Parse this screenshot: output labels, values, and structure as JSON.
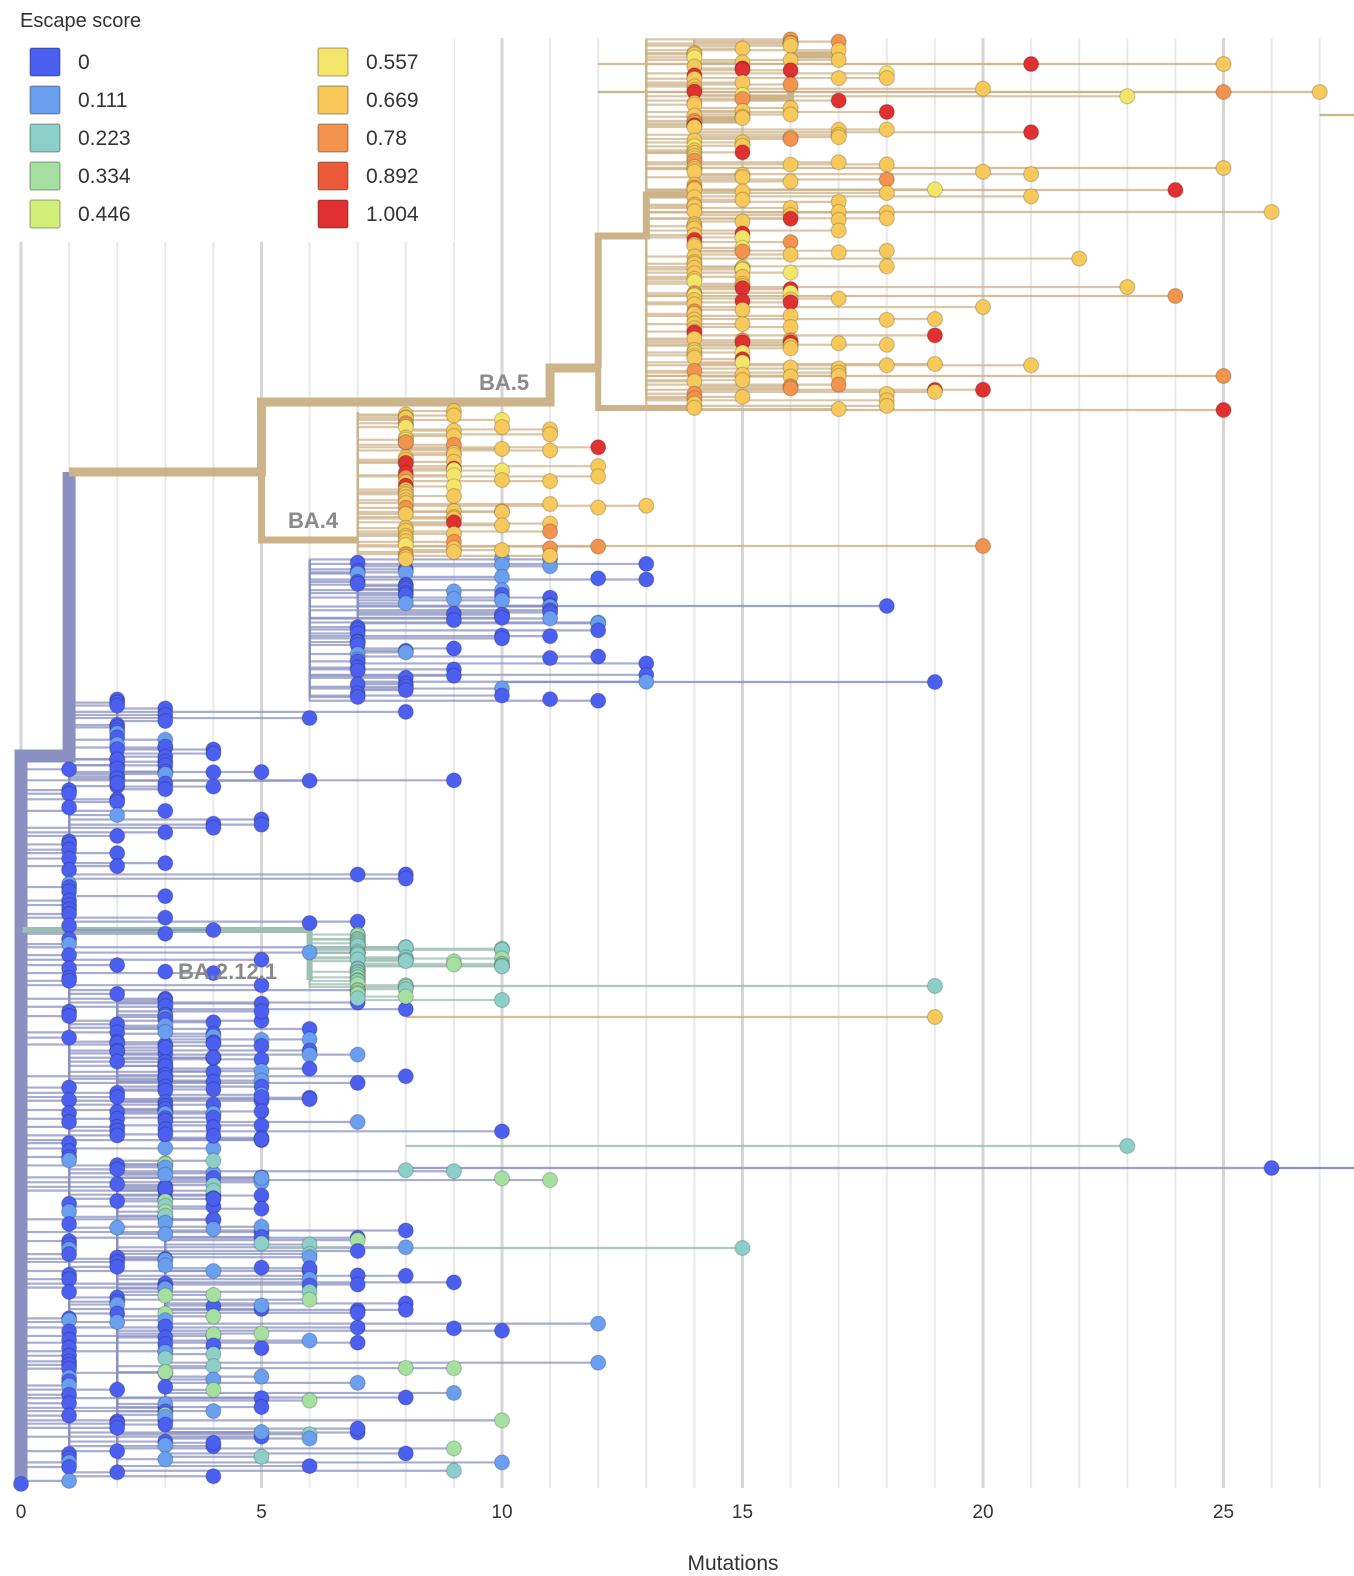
{
  "chart_data": {
    "type": "tree",
    "xlabel": "Mutations",
    "xlim": [
      0,
      27.5
    ],
    "x_ticks": [
      0,
      5,
      10,
      15,
      20,
      25
    ],
    "grid": "vertical lines every mutation",
    "legend": {
      "title": "Escape score",
      "placement": "top-left",
      "entries": [
        {
          "label": "0",
          "color": "#4b5ff0"
        },
        {
          "label": "0.111",
          "color": "#6a9ff0"
        },
        {
          "label": "0.223",
          "color": "#8ccfc8"
        },
        {
          "label": "0.334",
          "color": "#a5e0a0"
        },
        {
          "label": "0.446",
          "color": "#d4ee7a"
        },
        {
          "label": "0.557",
          "color": "#f5e46a"
        },
        {
          "label": "0.669",
          "color": "#f7c85a"
        },
        {
          "label": "0.78",
          "color": "#f2934e"
        },
        {
          "label": "0.892",
          "color": "#ec5a3c"
        },
        {
          "label": "1.004",
          "color": "#e03030"
        }
      ]
    },
    "clades": [
      {
        "name": "BA.5",
        "x": 10.2,
        "color": "0.669"
      },
      {
        "name": "BA.4",
        "x": 6.6,
        "color": "0.669"
      },
      {
        "name": "BA.2.12.1",
        "x": 5.8,
        "color": "0.223"
      }
    ],
    "branch_colors": {
      "base": "#8a90c2",
      "ba45": "#cdb389",
      "ba2121": "#9dbfb3"
    }
  }
}
